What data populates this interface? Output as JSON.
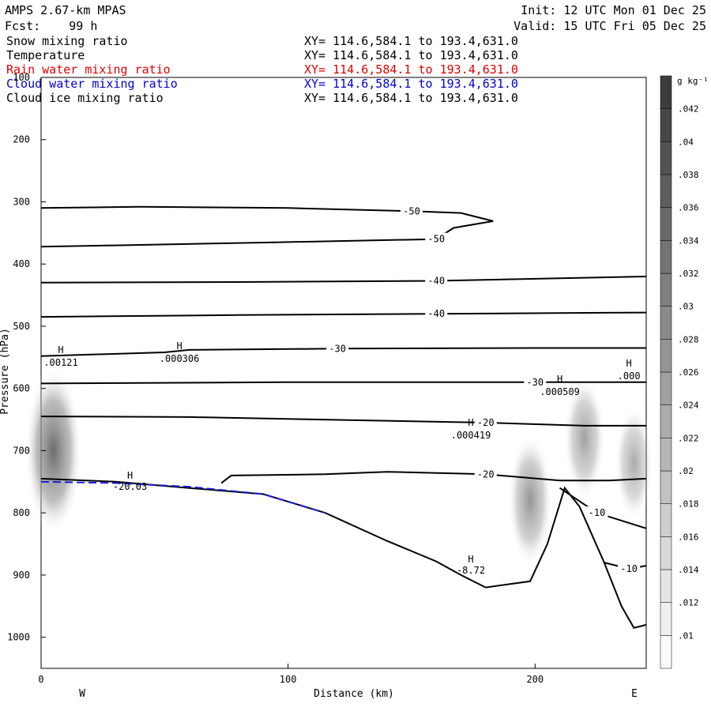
{
  "header": {
    "title": "AMPS 2.67-km MPAS",
    "forecast": "Fcst:    99 h",
    "init": "Init: 12 UTC Mon 01 Dec 25",
    "valid": "Valid: 15 UTC Fri 05 Dec 25"
  },
  "fields": [
    {
      "name": "Snow mixing ratio",
      "xy": "XY= 114.6,584.1 to 193.4,631.0",
      "color": "#000000"
    },
    {
      "name": "Temperature",
      "xy": "XY= 114.6,584.1 to 193.4,631.0",
      "color": "#000000"
    },
    {
      "name": "Rain water mixing ratio",
      "xy": "XY= 114.6,584.1 to 193.4,631.0",
      "color": "#e00000"
    },
    {
      "name": "Cloud water mixing ratio",
      "xy": "XY= 114.6,584.1 to 193.4,631.0",
      "color": "#0000d0"
    },
    {
      "name": "Cloud ice mixing ratio",
      "xy": "XY= 114.6,584.1 to 193.4,631.0",
      "color": "#000000"
    }
  ],
  "chart_data": {
    "type": "contour cross-section",
    "xlabel": "Distance (km)",
    "ylabel": "Pressure (hPa)",
    "xlim": [
      0,
      245
    ],
    "ylim": [
      1050,
      100
    ],
    "x_ticks": [
      "0",
      "100",
      "200"
    ],
    "y_ticks": [
      "100",
      "200",
      "300",
      "400",
      "500",
      "600",
      "700",
      "800",
      "900",
      "1000"
    ],
    "left_end": "W",
    "right_end": "E",
    "colorbar": {
      "unit": "g kg⁻¹",
      "labels": [
        ".01",
        ".012",
        ".014",
        ".016",
        ".018",
        ".02",
        ".022",
        ".024",
        ".026",
        ".028",
        ".03",
        ".032",
        ".034",
        ".036",
        ".038",
        ".04",
        ".042"
      ]
    },
    "temperature_contours": [
      {
        "level": "-50",
        "points": [
          [
            0,
            310
          ],
          [
            40,
            308
          ],
          [
            100,
            310
          ],
          [
            150,
            315
          ],
          [
            170,
            318
          ],
          [
            183,
            331
          ]
        ]
      },
      {
        "level": "-50",
        "points": [
          [
            0,
            372
          ],
          [
            30,
            370
          ],
          [
            95,
            365
          ],
          [
            160,
            360
          ],
          [
            167,
            342
          ],
          [
            183,
            331
          ]
        ]
      },
      {
        "level": "-40",
        "points": [
          [
            0,
            430
          ],
          [
            80,
            429
          ],
          [
            160,
            427
          ],
          [
            245,
            420
          ]
        ]
      },
      {
        "level": "-40",
        "points": [
          [
            0,
            485
          ],
          [
            80,
            482
          ],
          [
            160,
            480
          ],
          [
            245,
            478
          ]
        ]
      },
      {
        "level": "-30",
        "points": [
          [
            0,
            548
          ],
          [
            50,
            542
          ],
          [
            60,
            538
          ],
          [
            120,
            536
          ],
          [
            200,
            535
          ],
          [
            245,
            535
          ]
        ]
      },
      {
        "level": "-30",
        "points": [
          [
            0,
            592
          ],
          [
            100,
            590
          ],
          [
            200,
            590
          ],
          [
            245,
            590
          ]
        ]
      },
      {
        "level": "-20",
        "points": [
          [
            0,
            645
          ],
          [
            60,
            646
          ],
          [
            180,
            655
          ],
          [
            220,
            660
          ],
          [
            245,
            660
          ]
        ]
      },
      {
        "level": "-20",
        "points": [
          [
            73,
            752
          ],
          [
            77,
            740
          ],
          [
            115,
            738
          ],
          [
            140,
            734
          ],
          [
            180,
            738
          ],
          [
            210,
            748
          ],
          [
            230,
            748
          ],
          [
            245,
            745
          ]
        ]
      },
      {
        "level": "-10",
        "points": [
          [
            210,
            760
          ],
          [
            225,
            800
          ],
          [
            245,
            825
          ]
        ]
      },
      {
        "level": "-10",
        "points": [
          [
            228,
            880
          ],
          [
            238,
            890
          ],
          [
            245,
            885
          ]
        ]
      }
    ],
    "terrain": [
      [
        0,
        745
      ],
      [
        30,
        750
      ],
      [
        60,
        760
      ],
      [
        90,
        770
      ],
      [
        115,
        800
      ],
      [
        140,
        845
      ],
      [
        160,
        878
      ],
      [
        170,
        900
      ],
      [
        180,
        920
      ],
      [
        198,
        910
      ],
      [
        205,
        850
      ],
      [
        212,
        760
      ],
      [
        218,
        790
      ],
      [
        228,
        880
      ],
      [
        235,
        950
      ],
      [
        240,
        985
      ],
      [
        245,
        980
      ]
    ],
    "cloud_ice_contours": [
      {
        "level": ".00121",
        "max_marker": "H",
        "x": 8,
        "p": 543
      },
      {
        "level": ".000306",
        "max_marker": "H",
        "x": 56,
        "p": 537
      },
      {
        "level": ".000509",
        "max_marker": "H",
        "x": 210,
        "p": 590
      },
      {
        "level": ".000419",
        "max_marker": "H",
        "x": 174,
        "p": 660
      },
      {
        "level": ".000",
        "max_marker": "H",
        "x": 238,
        "p": 565
      }
    ],
    "temperature_extrema": [
      {
        "label": "-20.03",
        "marker": "H",
        "x": 36,
        "p": 745
      },
      {
        "label": "-8.72",
        "marker": "H",
        "x": 174,
        "p": 880
      }
    ],
    "cloud_water_line": [
      [
        0,
        750
      ],
      [
        30,
        752
      ],
      [
        60,
        758
      ],
      [
        90,
        770
      ],
      [
        115,
        800
      ]
    ],
    "snow_maxima": [
      {
        "x": 5,
        "p": 700,
        "value": 0.028
      },
      {
        "x": 198,
        "p": 780,
        "value": 0.02
      },
      {
        "x": 220,
        "p": 680,
        "value": 0.018
      },
      {
        "x": 240,
        "p": 720,
        "value": 0.016
      }
    ]
  }
}
